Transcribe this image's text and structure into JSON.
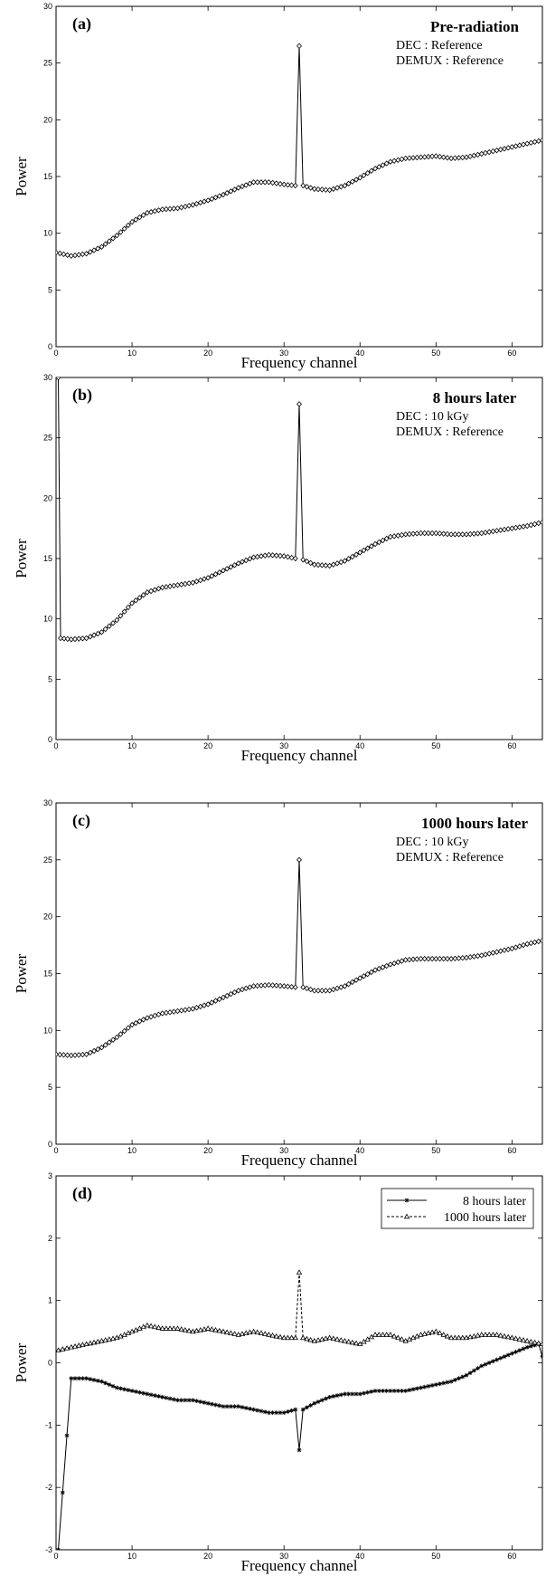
{
  "chart_data": [
    {
      "type": "line",
      "panel": "(a)",
      "annotation": {
        "title": "Pre-radiation",
        "lines": [
          "DEC : Reference",
          "DEMUX : Reference"
        ]
      },
      "xlabel": "Frequency channel",
      "ylabel": "Power",
      "xlim": [
        0,
        64
      ],
      "ylim": [
        0,
        30
      ],
      "xticks": [
        0,
        10,
        20,
        30,
        40,
        50,
        60
      ],
      "yticks": [
        0,
        5,
        10,
        15,
        20,
        25,
        30
      ],
      "marker": "diamond",
      "series": [
        {
          "x": [
            0,
            2,
            4,
            6,
            8,
            10,
            12,
            14,
            16,
            18,
            20,
            22,
            24,
            26,
            28,
            30,
            31.5,
            32,
            32.5,
            34,
            36,
            38,
            40,
            42,
            44,
            46,
            48,
            50,
            52,
            54,
            56,
            58,
            60,
            62,
            64
          ],
          "values": [
            8.3,
            8.0,
            8.2,
            8.8,
            9.8,
            11.0,
            11.8,
            12.1,
            12.2,
            12.5,
            12.9,
            13.4,
            14.0,
            14.5,
            14.5,
            14.3,
            14.2,
            26.5,
            14.2,
            13.9,
            13.8,
            14.2,
            14.9,
            15.7,
            16.3,
            16.6,
            16.7,
            16.8,
            16.6,
            16.7,
            17.0,
            17.3,
            17.6,
            17.9,
            18.2
          ]
        }
      ]
    },
    {
      "type": "line",
      "panel": "(b)",
      "annotation": {
        "title": "8 hours later",
        "lines": [
          "DEC : 10 kGy",
          "DEMUX : Reference"
        ]
      },
      "xlabel": "Frequency channel",
      "ylabel": "Power",
      "xlim": [
        0,
        64
      ],
      "ylim": [
        0,
        30
      ],
      "xticks": [
        0,
        10,
        20,
        30,
        40,
        50,
        60
      ],
      "yticks": [
        0,
        5,
        10,
        15,
        20,
        25,
        30
      ],
      "marker": "diamond",
      "series": [
        {
          "x": [
            0,
            0.3,
            0.6,
            2,
            4,
            6,
            8,
            10,
            12,
            14,
            16,
            18,
            20,
            22,
            24,
            26,
            28,
            30,
            31.5,
            32,
            32.5,
            34,
            36,
            38,
            40,
            42,
            44,
            46,
            48,
            50,
            52,
            54,
            56,
            58,
            60,
            62,
            64
          ],
          "values": [
            30,
            30,
            8.4,
            8.3,
            8.4,
            8.9,
            9.9,
            11.3,
            12.2,
            12.6,
            12.8,
            13.0,
            13.4,
            14.0,
            14.6,
            15.1,
            15.3,
            15.2,
            15.0,
            27.8,
            14.9,
            14.5,
            14.4,
            14.8,
            15.5,
            16.2,
            16.8,
            17.0,
            17.1,
            17.1,
            17.0,
            17.0,
            17.1,
            17.3,
            17.5,
            17.7,
            18.0
          ]
        }
      ]
    },
    {
      "type": "line",
      "panel": "(c)",
      "annotation": {
        "title": "1000 hours later",
        "lines": [
          "DEC : 10 kGy",
          "DEMUX : Reference"
        ]
      },
      "xlabel": "Frequency channel",
      "ylabel": "Power",
      "xlim": [
        0,
        64
      ],
      "ylim": [
        0,
        30
      ],
      "xticks": [
        0,
        10,
        20,
        30,
        40,
        50,
        60
      ],
      "yticks": [
        0,
        5,
        10,
        15,
        20,
        25,
        30
      ],
      "marker": "diamond",
      "series": [
        {
          "x": [
            0,
            2,
            4,
            6,
            8,
            10,
            12,
            14,
            16,
            18,
            20,
            22,
            24,
            26,
            28,
            30,
            31.5,
            32,
            32.5,
            34,
            36,
            38,
            40,
            42,
            44,
            46,
            48,
            50,
            52,
            54,
            56,
            58,
            60,
            62,
            64
          ],
          "values": [
            7.9,
            7.8,
            7.9,
            8.5,
            9.4,
            10.5,
            11.1,
            11.5,
            11.7,
            11.9,
            12.3,
            12.9,
            13.5,
            13.9,
            14.0,
            13.9,
            13.8,
            25.0,
            13.8,
            13.5,
            13.5,
            13.9,
            14.6,
            15.3,
            15.8,
            16.2,
            16.3,
            16.3,
            16.3,
            16.4,
            16.6,
            16.9,
            17.2,
            17.6,
            17.9
          ]
        }
      ]
    },
    {
      "type": "line",
      "panel": "(d)",
      "xlabel": "Frequency channel",
      "ylabel": "Power",
      "xlim": [
        0,
        64
      ],
      "ylim": [
        -3,
        3
      ],
      "xticks": [
        0,
        10,
        20,
        30,
        40,
        50,
        60
      ],
      "yticks": [
        -3,
        -2,
        -1,
        0,
        1,
        2,
        3
      ],
      "legend": "top-right",
      "series": [
        {
          "name": "8 hours later",
          "marker": "star",
          "dash": "solid",
          "x": [
            0.3,
            2,
            4,
            6,
            8,
            10,
            12,
            14,
            16,
            18,
            20,
            22,
            24,
            26,
            28,
            30,
            31.5,
            32,
            32.5,
            34,
            36,
            38,
            40,
            42,
            44,
            46,
            48,
            50,
            52,
            54,
            56,
            58,
            60,
            62,
            63.5,
            64
          ],
          "values": [
            -3,
            -0.25,
            -0.25,
            -0.3,
            -0.4,
            -0.45,
            -0.5,
            -0.55,
            -0.6,
            -0.6,
            -0.65,
            -0.7,
            -0.7,
            -0.75,
            -0.8,
            -0.8,
            -0.75,
            -1.4,
            -0.75,
            -0.65,
            -0.55,
            -0.5,
            -0.5,
            -0.45,
            -0.45,
            -0.45,
            -0.4,
            -0.35,
            -0.3,
            -0.2,
            -0.05,
            0.05,
            0.15,
            0.25,
            0.3,
            0.1
          ]
        },
        {
          "name": "1000 hours later",
          "marker": "triangle",
          "dash": "dashed",
          "x": [
            0.3,
            2,
            4,
            6,
            8,
            10,
            12,
            14,
            16,
            18,
            20,
            22,
            24,
            26,
            28,
            30,
            31.5,
            32,
            32.5,
            34,
            36,
            38,
            40,
            42,
            44,
            46,
            48,
            50,
            52,
            54,
            56,
            58,
            60,
            62,
            64
          ],
          "values": [
            0.2,
            0.25,
            0.3,
            0.35,
            0.4,
            0.5,
            0.6,
            0.55,
            0.55,
            0.5,
            0.55,
            0.5,
            0.45,
            0.5,
            0.45,
            0.4,
            0.4,
            1.45,
            0.4,
            0.35,
            0.4,
            0.35,
            0.3,
            0.45,
            0.45,
            0.35,
            0.45,
            0.5,
            0.4,
            0.4,
            0.45,
            0.45,
            0.4,
            0.35,
            0.3
          ]
        }
      ]
    }
  ]
}
